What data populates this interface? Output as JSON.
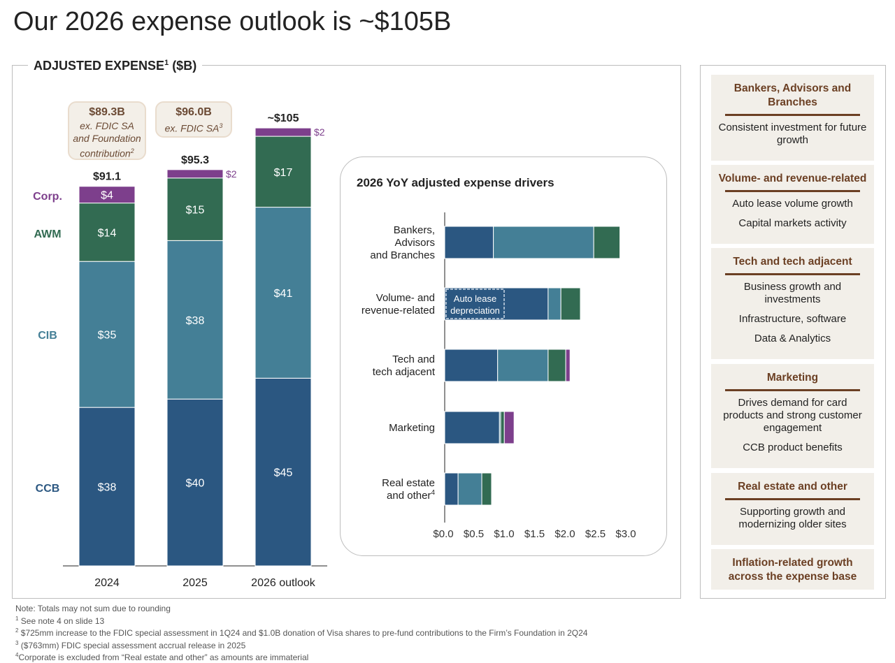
{
  "title": "Our 2026 expense outlook is ~$105B",
  "left_panel": {
    "label": "ADJUSTED EXPENSE",
    "label_sup": "1",
    "label_unit": " ($B)"
  },
  "callouts": [
    {
      "value": "$89.3B",
      "text": [
        "ex. FDIC SA",
        "and Foundation",
        "contribution"
      ],
      "sup": "2"
    },
    {
      "value": "$96.0B",
      "text": [
        "ex. FDIC SA"
      ],
      "sup": "3"
    }
  ],
  "colors": {
    "CCB": "#2b5781",
    "CIB": "#447f96",
    "AWM": "#326b52",
    "Corp": "#7d3f8c",
    "brown": "#6b3f23"
  },
  "chart_data": [
    {
      "type": "bar",
      "stacked": true,
      "title": "ADJUSTED EXPENSE1 ($B)",
      "categories": [
        "2024",
        "2025",
        "2026 outlook"
      ],
      "totals": [
        "$91.1",
        "$95.3",
        "~$105"
      ],
      "series": [
        {
          "name": "CCB",
          "values": [
            38,
            40,
            45
          ],
          "labels": [
            "$38",
            "$40",
            "$45"
          ]
        },
        {
          "name": "CIB",
          "values": [
            35,
            38,
            41
          ],
          "labels": [
            "$35",
            "$38",
            "$41"
          ]
        },
        {
          "name": "AWM",
          "values": [
            14,
            15,
            17
          ],
          "labels": [
            "$14",
            "$15",
            "$17"
          ]
        },
        {
          "name": "Corp.",
          "values": [
            4,
            2,
            2
          ],
          "labels": [
            "$4",
            "$2",
            "$2"
          ]
        }
      ],
      "ylim": [
        0,
        105
      ]
    },
    {
      "type": "bar",
      "orientation": "horizontal",
      "stacked": true,
      "title": "2026 YoY adjusted expense drivers",
      "categories": [
        [
          "Bankers,",
          "Advisors",
          "and Branches"
        ],
        [
          "Volume- and",
          "revenue-related"
        ],
        [
          "Tech and",
          "tech adjacent"
        ],
        [
          "Marketing"
        ],
        [
          "Real estate",
          "and other"
        ]
      ],
      "category_sup": [
        "",
        "",
        "",
        "",
        "4"
      ],
      "series": [
        {
          "name": "CCB",
          "values": [
            0.8,
            1.7,
            0.87,
            0.9,
            0.22
          ]
        },
        {
          "name": "CIB",
          "values": [
            1.65,
            0.21,
            0.83,
            0.02,
            0.39
          ]
        },
        {
          "name": "AWM",
          "values": [
            0.43,
            0.32,
            0.29,
            0.06,
            0.16
          ]
        },
        {
          "name": "Corp.",
          "values": [
            0,
            0,
            0.07,
            0.16,
            0
          ]
        }
      ],
      "annotation": {
        "text": [
          "Auto lease",
          "depreciation"
        ],
        "category_index": 1,
        "value": 1.0
      },
      "xticks": [
        "$0.0",
        "$0.5",
        "$1.0",
        "$1.5",
        "$2.0",
        "$2.5",
        "$3.0"
      ],
      "xlim": [
        0,
        3.0
      ]
    }
  ],
  "right_panel": [
    {
      "heading": "Bankers, Advisors and Branches",
      "items": [
        "Consistent investment for future growth"
      ]
    },
    {
      "heading": "Volume- and revenue-related",
      "items": [
        "Auto lease volume growth",
        "Capital markets activity"
      ]
    },
    {
      "heading": "Tech and tech adjacent",
      "items": [
        "Business growth and investments",
        "Infrastructure, software",
        "Data & Analytics"
      ]
    },
    {
      "heading": "Marketing",
      "items": [
        "Drives demand for card products and strong customer engagement",
        "CCB product benefits"
      ]
    },
    {
      "heading": "Real estate and other",
      "items": [
        "Supporting growth and modernizing older sites"
      ]
    },
    {
      "heading": "Inflation-related growth across the expense base",
      "items": []
    }
  ],
  "notes": [
    {
      "sup": "",
      "text": "Note: Totals may not sum due to rounding"
    },
    {
      "sup": "1",
      "text": " See note 4 on slide 13"
    },
    {
      "sup": "2",
      "text": " $725mm increase to the FDIC special assessment in 1Q24 and $1.0B donation of Visa shares to pre-fund contributions to the Firm’s Foundation in 2Q24"
    },
    {
      "sup": "3",
      "text": " ($763mm) FDIC special assessment accrual release in 2025"
    },
    {
      "sup": "4",
      "text": "Corporate is excluded from “Real estate and other” as amounts are immaterial"
    }
  ]
}
